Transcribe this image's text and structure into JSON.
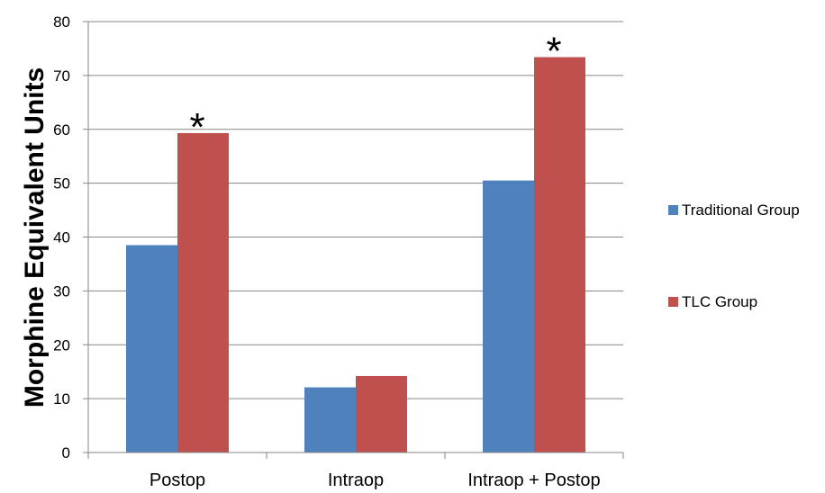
{
  "chart_data": {
    "type": "bar",
    "title": "",
    "xlabel": "",
    "ylabel": "Morphine Equivalent Units",
    "categories": [
      "Postop",
      "Intraop",
      "Intraop + Postop"
    ],
    "series": [
      {
        "name": "Traditional Group",
        "color": "#4f81bd",
        "values": [
          38.5,
          12.1,
          50.5
        ]
      },
      {
        "name": "TLC Group",
        "color": "#c0504d",
        "values": [
          59.3,
          14.2,
          73.4
        ]
      }
    ],
    "ylim": [
      0,
      80
    ],
    "yticks": [
      0,
      10,
      20,
      30,
      40,
      50,
      60,
      70,
      80
    ],
    "grid": true,
    "legend_position": "right",
    "annotations": [
      {
        "text": "*",
        "category": "Postop",
        "series": "TLC Group"
      },
      {
        "text": "*",
        "category": "Intraop + Postop",
        "series": "TLC Group"
      }
    ]
  }
}
